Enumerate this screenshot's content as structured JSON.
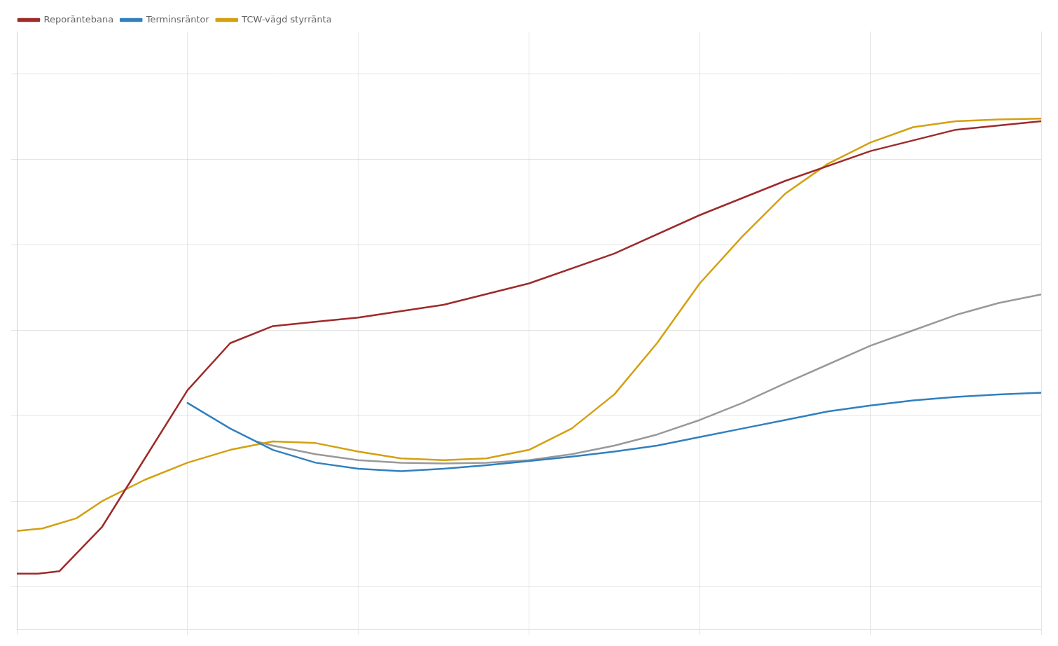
{
  "chart_data": {
    "type": "line",
    "xlim": [
      0,
      12
    ],
    "xticks": [
      0,
      2,
      4,
      6,
      8,
      10,
      12
    ],
    "ylim": [
      -0.5,
      6.5
    ],
    "yticks": [
      0,
      1,
      2,
      3,
      4,
      5,
      6
    ],
    "grid": true,
    "tick_labels": false,
    "legend": "upper left",
    "series": [
      {
        "name": "Reporäntebana",
        "color": "#9e2a2a",
        "x": [
          0.0,
          0.25,
          0.5,
          1.0,
          1.5,
          2.0,
          2.5,
          3.0,
          3.5,
          4.0,
          5.0,
          6.0,
          7.0,
          8.0,
          9.0,
          10.0,
          11.0,
          12.0
        ],
        "values": [
          0.15,
          0.15,
          0.18,
          0.7,
          1.5,
          2.3,
          2.85,
          3.05,
          3.1,
          3.15,
          3.3,
          3.55,
          3.9,
          4.35,
          4.75,
          5.1,
          5.35,
          5.45
        ]
      },
      {
        "name": "Terminsräntor",
        "color": "#3080c0",
        "x": [
          2.0,
          2.5,
          3.0,
          3.5,
          4.0,
          4.5,
          5.0,
          5.5,
          6.0,
          6.5,
          7.0,
          7.5,
          8.0,
          8.5,
          9.0,
          9.5,
          10.0,
          10.5,
          11.0,
          11.5,
          12.0
        ],
        "values": [
          2.15,
          1.85,
          1.6,
          1.45,
          1.38,
          1.35,
          1.38,
          1.42,
          1.47,
          1.52,
          1.58,
          1.65,
          1.75,
          1.85,
          1.95,
          2.05,
          2.12,
          2.18,
          2.22,
          2.25,
          2.27
        ]
      },
      {
        "name": "TCW-vägd styrränta",
        "color": "#d4a010",
        "x": [
          0.0,
          0.3,
          0.7,
          1.0,
          1.5,
          2.0,
          2.5,
          3.0,
          3.5,
          4.0,
          4.5,
          5.0,
          5.5,
          6.0,
          6.5,
          7.0,
          7.5,
          8.0,
          8.5,
          9.0,
          9.5,
          10.0,
          10.5,
          11.0,
          11.5,
          12.0
        ],
        "values": [
          0.65,
          0.68,
          0.8,
          1.0,
          1.25,
          1.45,
          1.6,
          1.7,
          1.68,
          1.58,
          1.5,
          1.48,
          1.5,
          1.6,
          1.85,
          2.25,
          2.85,
          3.55,
          4.1,
          4.6,
          4.95,
          5.2,
          5.38,
          5.45,
          5.47,
          5.48
        ]
      },
      {
        "color": "#999999",
        "x": [
          2.8,
          3.0,
          3.5,
          4.0,
          4.5,
          5.0,
          5.5,
          6.0,
          6.5,
          7.0,
          7.5,
          8.0,
          8.5,
          9.0,
          9.5,
          10.0,
          10.5,
          11.0,
          11.5,
          12.0
        ],
        "values": [
          1.7,
          1.65,
          1.55,
          1.48,
          1.45,
          1.44,
          1.45,
          1.48,
          1.55,
          1.65,
          1.78,
          1.95,
          2.15,
          2.38,
          2.6,
          2.82,
          3.0,
          3.18,
          3.32,
          3.42
        ]
      }
    ]
  }
}
